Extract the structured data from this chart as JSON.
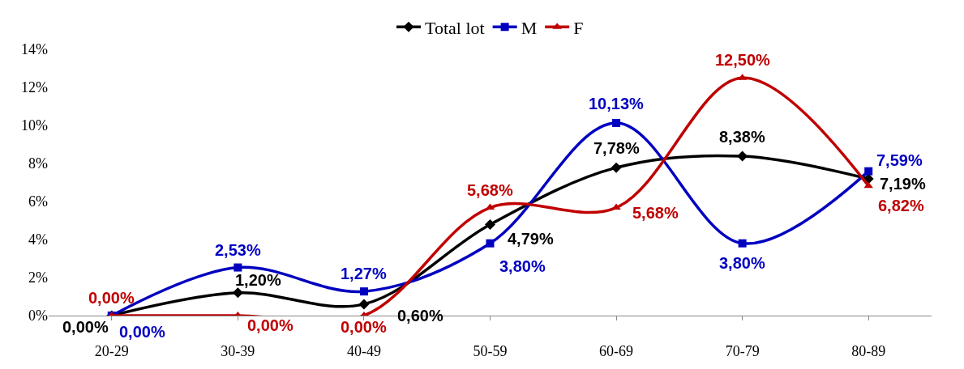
{
  "chart_data": {
    "type": "line",
    "categories": [
      "20-29",
      "30-39",
      "40-49",
      "50-59",
      "60-69",
      "70-79",
      "80-89"
    ],
    "series": [
      {
        "name": "Total lot",
        "color": "#000000",
        "marker": "diamond",
        "values": [
          0,
          1.2,
          0.6,
          4.79,
          7.78,
          8.38,
          7.19
        ],
        "value_labels": [
          "0,00%",
          "1,20%",
          "0,60%",
          "4,79%",
          "7,78%",
          "8,38%",
          "7,19%"
        ]
      },
      {
        "name": "M",
        "color": "#0000c0",
        "marker": "square",
        "values": [
          0,
          2.53,
          1.27,
          3.8,
          10.13,
          3.8,
          7.59
        ],
        "value_labels": [
          "0,00%",
          "2,53%",
          "1,27%",
          "3,80%",
          "10,13%",
          "3,80%",
          "7,59%"
        ]
      },
      {
        "name": "F",
        "color": "#c00000",
        "marker": "triangle",
        "values": [
          0,
          0,
          0,
          5.68,
          5.68,
          12.5,
          6.82
        ],
        "value_labels": [
          "0,00%",
          "0,00%",
          "0,00%",
          "5,68%",
          "5,68%",
          "12,50%",
          "6,82%"
        ]
      }
    ],
    "ylim": [
      0,
      14
    ],
    "yticks": [
      {
        "value": 0,
        "label": "0%"
      },
      {
        "value": 2,
        "label": "2%"
      },
      {
        "value": 4,
        "label": "4%"
      },
      {
        "value": 6,
        "label": "6%"
      },
      {
        "value": 8,
        "label": "8%"
      },
      {
        "value": 10,
        "label": "10%"
      },
      {
        "value": 12,
        "label": "12%"
      },
      {
        "value": 14,
        "label": "14%"
      }
    ],
    "legend": "top",
    "line_style": "solid"
  }
}
